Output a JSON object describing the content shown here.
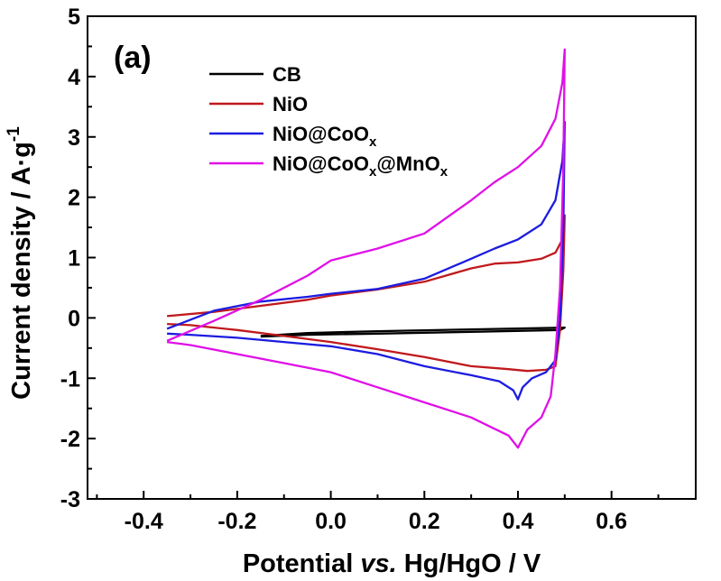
{
  "chart_data": {
    "type": "line",
    "panel_label": "(a)",
    "xlabel": {
      "prefix": "Potential ",
      "italic": "vs.",
      "suffix": " Hg/HgO / V"
    },
    "ylabel": {
      "main": "Current density / A·g",
      "sup": "-1"
    },
    "xlim": [
      -0.52,
      0.78
    ],
    "ylim": [
      -3,
      5
    ],
    "x_ticks": [
      -0.4,
      -0.2,
      0.0,
      0.2,
      0.4,
      0.6
    ],
    "x_tick_labels": [
      "-0.4",
      "-0.2",
      "0.0",
      "0.2",
      "0.4",
      "0.6"
    ],
    "y_ticks": [
      -3,
      -2,
      -1,
      0,
      1,
      2,
      3,
      4,
      5
    ],
    "y_tick_labels": [
      "-3",
      "-2",
      "-1",
      "0",
      "1",
      "2",
      "3",
      "4",
      "5"
    ],
    "grid": false,
    "legend_position": "top-left",
    "series": [
      {
        "name": "CB",
        "name_parts": [
          {
            "t": "CB"
          }
        ],
        "color": "#000000",
        "points": [
          [
            -0.15,
            -0.3
          ],
          [
            -0.05,
            -0.25
          ],
          [
            0.1,
            -0.22
          ],
          [
            0.3,
            -0.19
          ],
          [
            0.45,
            -0.17
          ],
          [
            0.5,
            -0.16
          ],
          [
            0.49,
            -0.2
          ],
          [
            0.3,
            -0.23
          ],
          [
            0.1,
            -0.26
          ],
          [
            -0.05,
            -0.28
          ],
          [
            -0.15,
            -0.31
          ]
        ]
      },
      {
        "name": "NiO",
        "name_parts": [
          {
            "t": "NiO"
          }
        ],
        "color": "#c0191c",
        "points": [
          [
            -0.35,
            0.03
          ],
          [
            -0.25,
            0.1
          ],
          [
            -0.15,
            0.2
          ],
          [
            -0.05,
            0.3
          ],
          [
            0.0,
            0.37
          ],
          [
            0.1,
            0.47
          ],
          [
            0.2,
            0.6
          ],
          [
            0.3,
            0.82
          ],
          [
            0.35,
            0.9
          ],
          [
            0.4,
            0.92
          ],
          [
            0.45,
            0.98
          ],
          [
            0.48,
            1.08
          ],
          [
            0.495,
            1.3
          ],
          [
            0.5,
            1.7
          ],
          [
            0.497,
            0.8
          ],
          [
            0.49,
            -0.2
          ],
          [
            0.48,
            -0.8
          ],
          [
            0.46,
            -0.86
          ],
          [
            0.42,
            -0.88
          ],
          [
            0.38,
            -0.85
          ],
          [
            0.3,
            -0.8
          ],
          [
            0.2,
            -0.65
          ],
          [
            0.1,
            -0.52
          ],
          [
            0.0,
            -0.4
          ],
          [
            -0.1,
            -0.3
          ],
          [
            -0.2,
            -0.2
          ],
          [
            -0.3,
            -0.12
          ],
          [
            -0.35,
            -0.1
          ]
        ]
      },
      {
        "name": "NiO@CoOx",
        "name_parts": [
          {
            "t": "NiO@CoO"
          },
          {
            "t": "x",
            "sub": true
          }
        ],
        "color": "#1c1ce0",
        "points": [
          [
            -0.35,
            -0.18
          ],
          [
            -0.25,
            0.12
          ],
          [
            -0.15,
            0.27
          ],
          [
            -0.05,
            0.35
          ],
          [
            0.0,
            0.4
          ],
          [
            0.1,
            0.48
          ],
          [
            0.2,
            0.65
          ],
          [
            0.3,
            0.98
          ],
          [
            0.35,
            1.15
          ],
          [
            0.4,
            1.3
          ],
          [
            0.45,
            1.55
          ],
          [
            0.48,
            1.95
          ],
          [
            0.495,
            2.6
          ],
          [
            0.5,
            3.25
          ],
          [
            0.497,
            1.5
          ],
          [
            0.49,
            0.0
          ],
          [
            0.48,
            -0.7
          ],
          [
            0.46,
            -0.9
          ],
          [
            0.43,
            -1.0
          ],
          [
            0.41,
            -1.15
          ],
          [
            0.4,
            -1.35
          ],
          [
            0.39,
            -1.2
          ],
          [
            0.36,
            -1.05
          ],
          [
            0.3,
            -0.95
          ],
          [
            0.2,
            -0.8
          ],
          [
            0.1,
            -0.6
          ],
          [
            0.0,
            -0.47
          ],
          [
            -0.1,
            -0.4
          ],
          [
            -0.2,
            -0.33
          ],
          [
            -0.3,
            -0.28
          ],
          [
            -0.35,
            -0.26
          ]
        ]
      },
      {
        "name": "NiO@CoOx@MnOx",
        "name_parts": [
          {
            "t": "NiO@CoO"
          },
          {
            "t": "x",
            "sub": true
          },
          {
            "t": "@MnO"
          },
          {
            "t": "x",
            "sub": true
          }
        ],
        "color": "#e010e8",
        "points": [
          [
            -0.35,
            -0.38
          ],
          [
            -0.25,
            -0.05
          ],
          [
            -0.15,
            0.3
          ],
          [
            -0.05,
            0.7
          ],
          [
            0.0,
            0.95
          ],
          [
            0.1,
            1.15
          ],
          [
            0.2,
            1.4
          ],
          [
            0.3,
            1.95
          ],
          [
            0.35,
            2.25
          ],
          [
            0.4,
            2.5
          ],
          [
            0.45,
            2.85
          ],
          [
            0.48,
            3.3
          ],
          [
            0.495,
            3.9
          ],
          [
            0.5,
            4.45
          ],
          [
            0.497,
            2.5
          ],
          [
            0.49,
            0.5
          ],
          [
            0.48,
            -0.6
          ],
          [
            0.47,
            -1.3
          ],
          [
            0.45,
            -1.65
          ],
          [
            0.42,
            -1.85
          ],
          [
            0.4,
            -2.15
          ],
          [
            0.38,
            -1.95
          ],
          [
            0.34,
            -1.8
          ],
          [
            0.3,
            -1.65
          ],
          [
            0.2,
            -1.4
          ],
          [
            0.1,
            -1.15
          ],
          [
            0.0,
            -0.9
          ],
          [
            -0.1,
            -0.75
          ],
          [
            -0.2,
            -0.6
          ],
          [
            -0.3,
            -0.45
          ],
          [
            -0.35,
            -0.4
          ]
        ]
      }
    ]
  }
}
